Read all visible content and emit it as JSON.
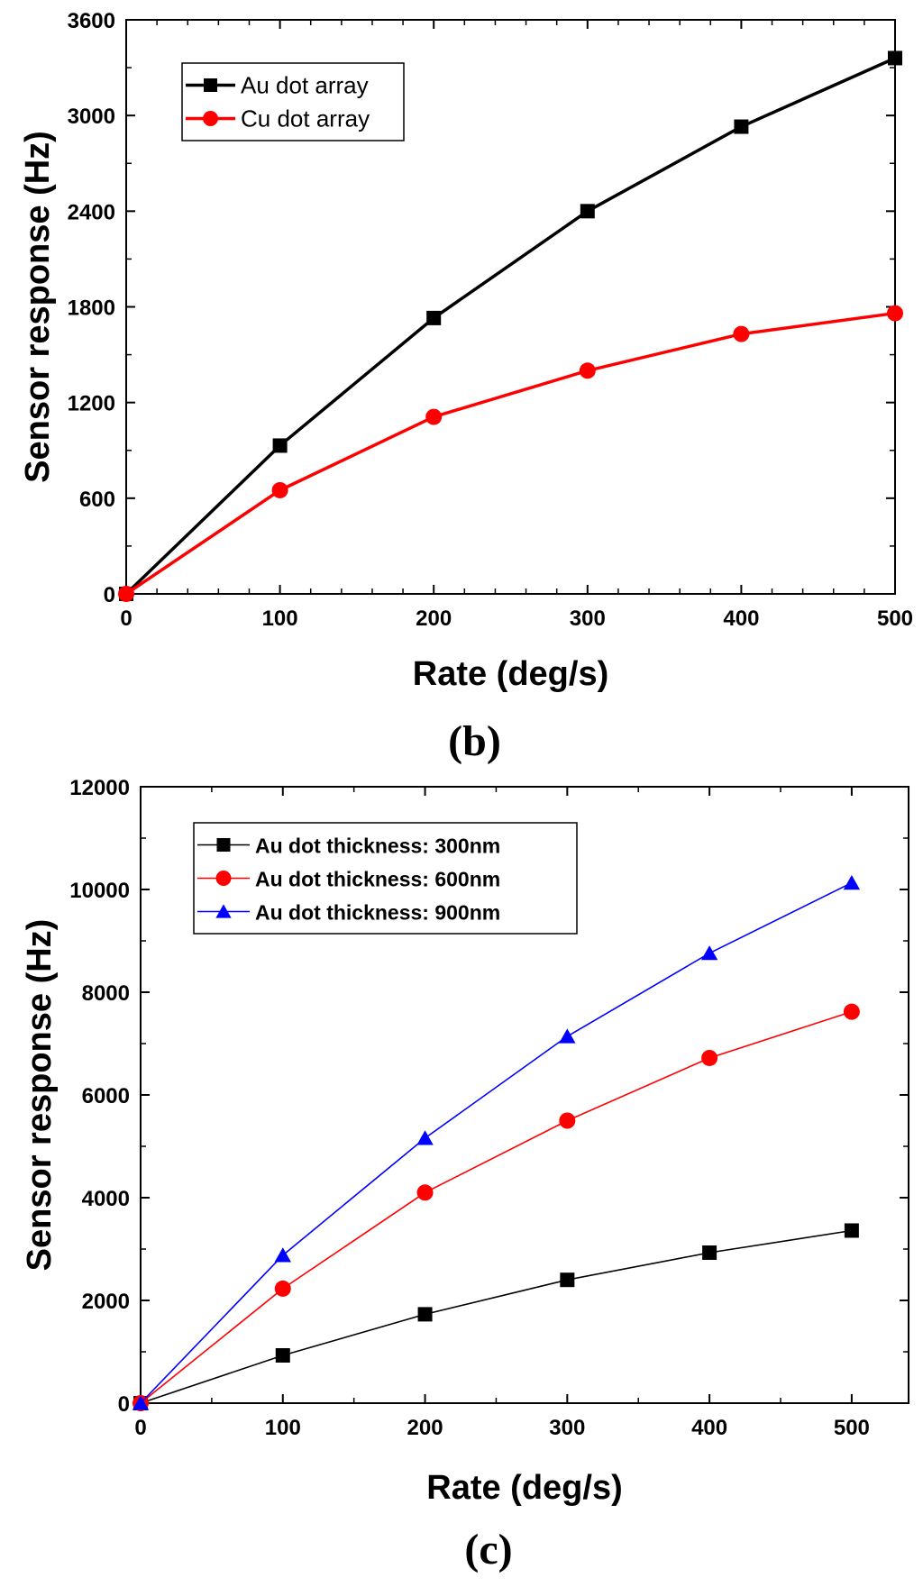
{
  "chart_data": [
    {
      "type": "line",
      "panel_label": "(b)",
      "xlabel": "Rate (deg/s)",
      "ylabel": "Sensor response (Hz)",
      "xlim": [
        0,
        500
      ],
      "ylim": [
        0,
        3600
      ],
      "xticks": [
        0,
        100,
        200,
        300,
        400,
        500
      ],
      "yticks": [
        0,
        600,
        1200,
        1800,
        2400,
        3000,
        3600
      ],
      "x": [
        0,
        100,
        200,
        300,
        400,
        500
      ],
      "legend_position": "top-left",
      "series": [
        {
          "name": "Au dot array",
          "color": "#000000",
          "marker": "square",
          "values": [
            0,
            930,
            1730,
            2400,
            2930,
            3360
          ]
        },
        {
          "name": "Cu dot array",
          "color": "#ff0000",
          "marker": "circle",
          "values": [
            0,
            650,
            1110,
            1400,
            1630,
            1760
          ]
        }
      ]
    },
    {
      "type": "line",
      "panel_label": "(c)",
      "xlabel": "Rate (deg/s)",
      "ylabel": "Sensor response (Hz)",
      "xlim": [
        0,
        540
      ],
      "ylim": [
        0,
        12000
      ],
      "xticks": [
        0,
        100,
        200,
        300,
        400,
        500
      ],
      "yticks": [
        0,
        2000,
        4000,
        6000,
        8000,
        10000,
        12000
      ],
      "x": [
        0,
        100,
        200,
        300,
        400,
        500
      ],
      "legend_position": "top-left",
      "series": [
        {
          "name": "Au dot thickness: 300nm",
          "color": "#000000",
          "marker": "square",
          "values": [
            0,
            930,
            1730,
            2400,
            2930,
            3360
          ]
        },
        {
          "name": "Au dot thickness: 600nm",
          "color": "#ff0000",
          "marker": "circle",
          "values": [
            0,
            2230,
            4100,
            5500,
            6720,
            7620
          ]
        },
        {
          "name": "Au dot thickness: 900nm",
          "color": "#0000ff",
          "marker": "triangle",
          "values": [
            0,
            2880,
            5160,
            7140,
            8760,
            10130
          ]
        }
      ]
    }
  ]
}
